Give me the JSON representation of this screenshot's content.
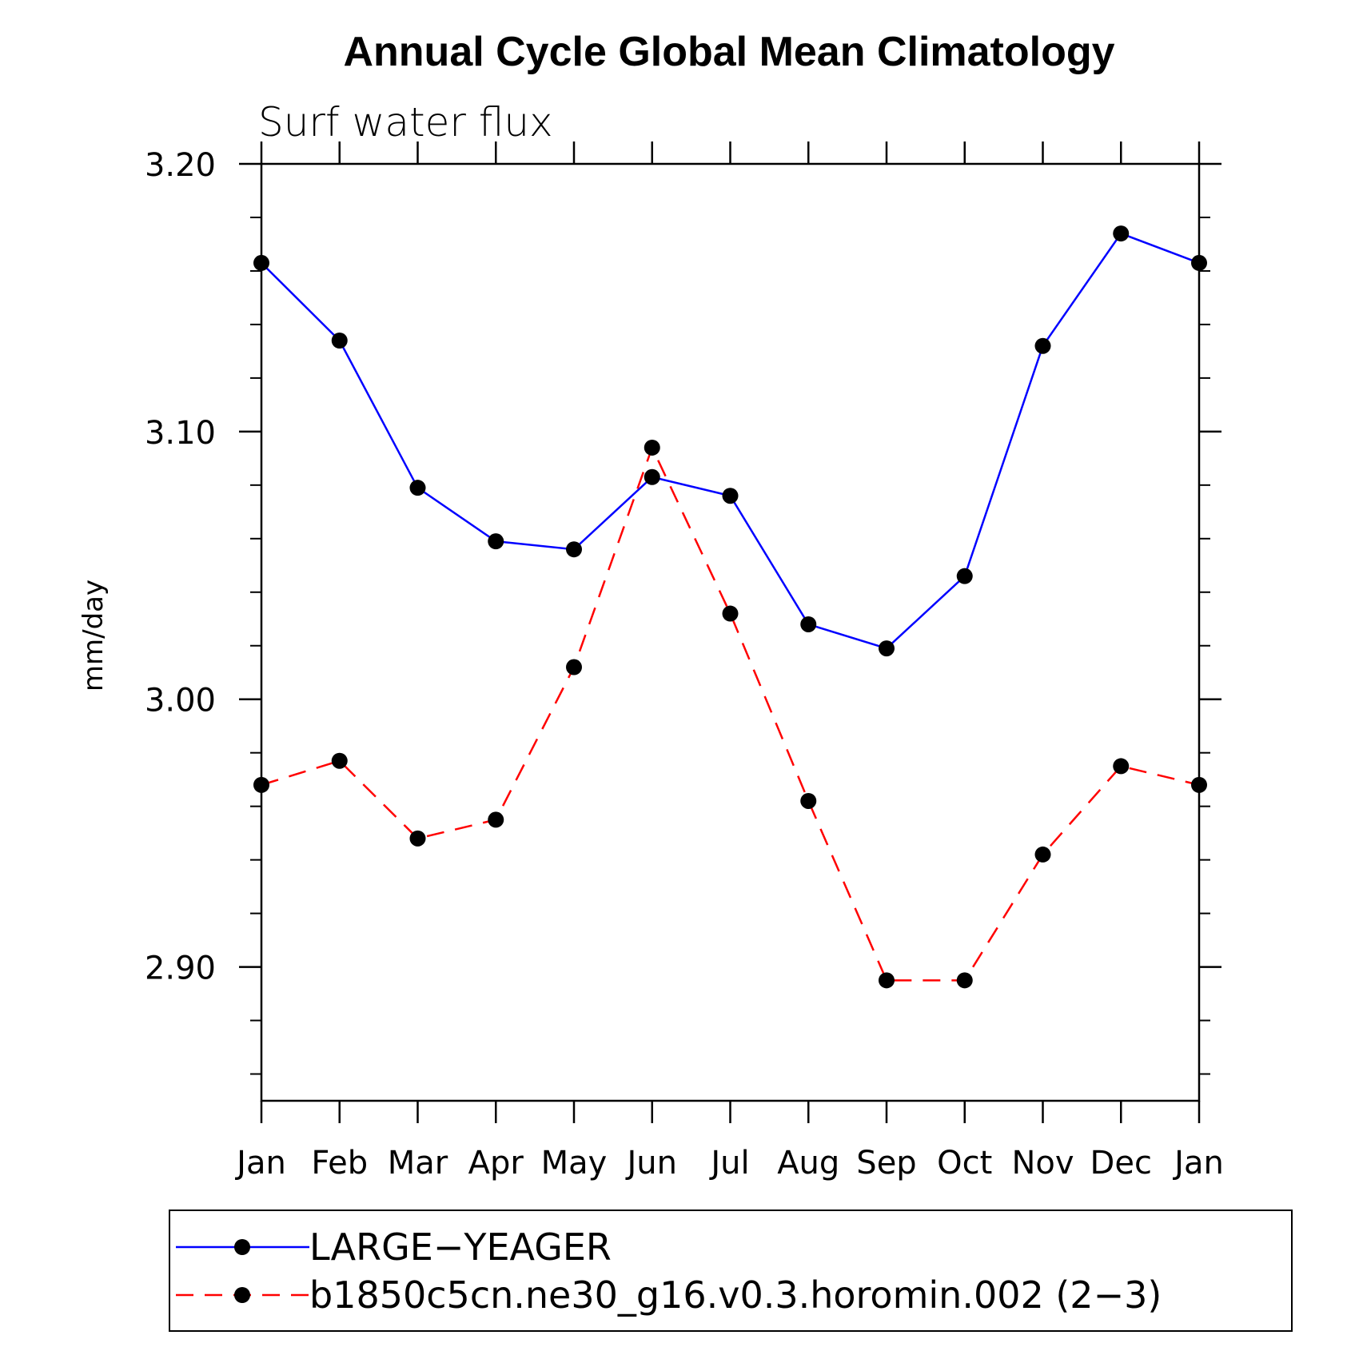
{
  "chart_data": {
    "type": "line",
    "title": "Annual Cycle Global Mean Climatology",
    "subtitle": "Surf water flux",
    "xlabel": "",
    "ylabel": "mm/day",
    "categories": [
      "Jan",
      "Feb",
      "Mar",
      "Apr",
      "May",
      "Jun",
      "Jul",
      "Aug",
      "Sep",
      "Oct",
      "Nov",
      "Dec",
      "Jan"
    ],
    "ylim": [
      2.85,
      3.2
    ],
    "y_ticks": [
      "2.90",
      "3.00",
      "3.10",
      "3.20"
    ],
    "y_tick_values": [
      2.9,
      3.0,
      3.1,
      3.2
    ],
    "y_minor_step": 0.02,
    "grid": false,
    "legend_position": "bottom",
    "series": [
      {
        "name": "LARGE−YEAGER",
        "color": "#0000ff",
        "line_style": "solid",
        "marker": "filled-circle",
        "values": [
          3.163,
          3.134,
          3.079,
          3.059,
          3.056,
          3.083,
          3.076,
          3.028,
          3.019,
          3.046,
          3.132,
          3.174,
          3.163
        ]
      },
      {
        "name": "b1850c5cn.ne30_g16.v0.3.horomin.002 (2−3)",
        "color": "#ff0000",
        "line_style": "dashed",
        "marker": "filled-circle",
        "values": [
          2.968,
          2.977,
          2.948,
          2.955,
          3.012,
          3.094,
          3.032,
          2.962,
          2.895,
          2.895,
          2.942,
          2.975,
          2.968
        ]
      }
    ]
  }
}
